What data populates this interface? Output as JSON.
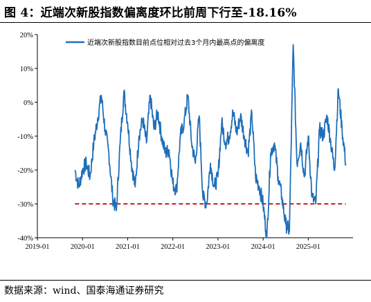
{
  "title": "图 4：近端次新股指数偏离度环比前周下行至-18.16%",
  "source": "数据来源：wind、国泰海通证券研究",
  "colors": {
    "series": "#1f6fb8",
    "reference": "#d11f1f",
    "axis": "#000000"
  },
  "chart_data": {
    "type": "line",
    "title": "图 4：近端次新股指数偏离度环比前周下行至-18.16%",
    "xlabel": "",
    "ylabel": "",
    "xlim": [
      "2019-01",
      "2025-12"
    ],
    "ylim": [
      -40,
      20
    ],
    "y_ticks": [
      "20%",
      "10%",
      "0%",
      "-10%",
      "-20%",
      "-30%",
      "-40%"
    ],
    "y_tick_values": [
      20,
      10,
      0,
      -10,
      -20,
      -30,
      -40
    ],
    "x_ticks": [
      "2019-01",
      "2020-01",
      "2021-01",
      "2022-01",
      "2023-01",
      "2024-01",
      "2025-01"
    ],
    "grid": false,
    "legend_position": "top",
    "series": [
      {
        "name": "近端次新股指数目前点位相对过去3个月内最高点的偏离度",
        "x": [
          "2019-11",
          "2019-12",
          "2020-01",
          "2020-02",
          "2020-03",
          "2020-04",
          "2020-05",
          "2020-06",
          "2020-07",
          "2020-08",
          "2020-09",
          "2020-10",
          "2020-11",
          "2020-12",
          "2021-01",
          "2021-02",
          "2021-03",
          "2021-04",
          "2021-05",
          "2021-06",
          "2021-07",
          "2021-08",
          "2021-09",
          "2021-10",
          "2021-11",
          "2021-12",
          "2022-01",
          "2022-02",
          "2022-03",
          "2022-04",
          "2022-05",
          "2022-06",
          "2022-07",
          "2022-08",
          "2022-09",
          "2022-10",
          "2022-11",
          "2022-12",
          "2023-01",
          "2023-02",
          "2023-03",
          "2023-04",
          "2023-05",
          "2023-06",
          "2023-07",
          "2023-08",
          "2023-09",
          "2023-10",
          "2023-11",
          "2023-12",
          "2024-01",
          "2024-02",
          "2024-03",
          "2024-04",
          "2024-05",
          "2024-06",
          "2024-07",
          "2024-08",
          "2024-09",
          "2024-10",
          "2024-11",
          "2024-12",
          "2025-01",
          "2025-02",
          "2025-03",
          "2025-04",
          "2025-05",
          "2025-06",
          "2025-07",
          "2025-08",
          "2025-09",
          "2025-10",
          "2025-11"
        ],
        "values": [
          -20,
          -25,
          -20,
          -18,
          -22,
          -12,
          -5,
          2,
          -8,
          -15,
          -28,
          -32,
          -12,
          3,
          -6,
          -18,
          -25,
          -10,
          -5,
          -12,
          2,
          -8,
          -3,
          -10,
          -15,
          -14,
          -24,
          -26,
          -10,
          -6,
          2,
          -12,
          -18,
          -4,
          -28,
          -30,
          -18,
          -25,
          -22,
          -6,
          -12,
          -10,
          -3,
          -9,
          -4,
          -10,
          -15,
          -3,
          -22,
          -25,
          -30,
          -40,
          -15,
          -12,
          -22,
          -28,
          -36,
          -38,
          17,
          -18,
          -12,
          -22,
          -10,
          -28,
          -30,
          -8,
          -10,
          -4,
          -12,
          -20,
          4,
          -8,
          -18.16
        ]
      },
      {
        "name": "",
        "values": [
          -30,
          -30
        ]
      }
    ]
  }
}
